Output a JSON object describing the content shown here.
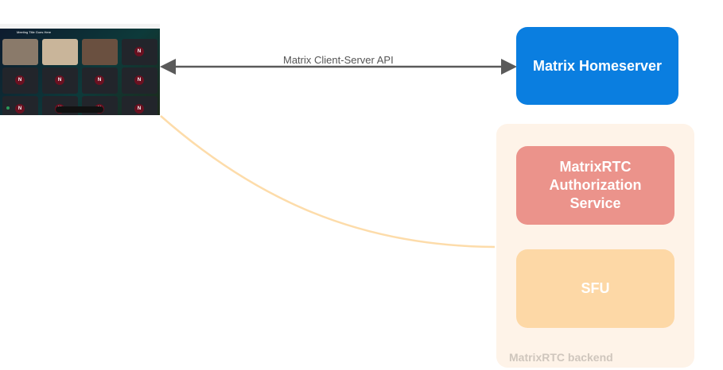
{
  "client": {
    "meeting_title": "Meeting Title Goes Here",
    "avatar_letter": "N"
  },
  "edges": {
    "client_server_api": "Matrix Client-Server API"
  },
  "nodes": {
    "homeserver": "Matrix Homeserver",
    "auth_service": "MatrixRTC Authorization Service",
    "sfu": "SFU",
    "backend_group": "MatrixRTC backend"
  },
  "colors": {
    "homeserver": "#0a7ee0",
    "auth_service": "#eb938b",
    "sfu": "#fdd8a6",
    "backend_bg": "#fef3e8",
    "connector": "#fddcaa",
    "arrow": "#5a5a5a"
  }
}
